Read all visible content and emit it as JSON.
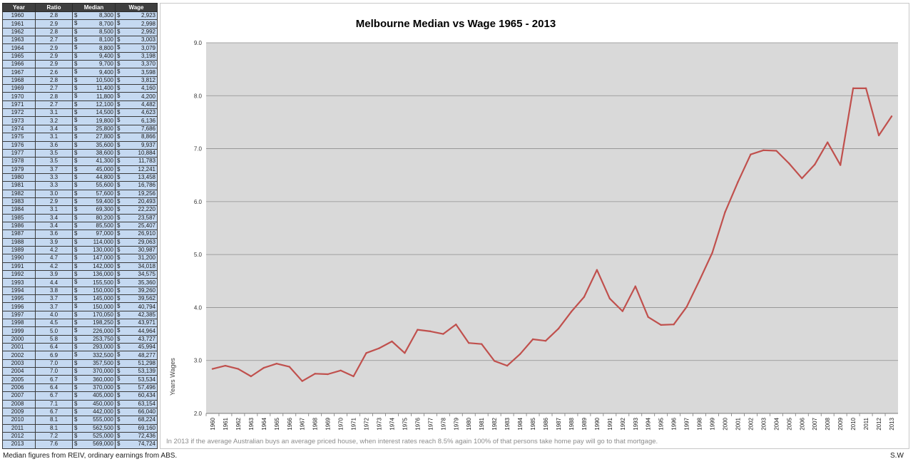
{
  "table": {
    "headers": [
      "Year",
      "Ratio",
      "Median",
      "Wage"
    ],
    "currency_symbol": "$",
    "rows": [
      [
        "1960",
        "2.8",
        "8,300",
        "2,923"
      ],
      [
        "1961",
        "2.9",
        "8,700",
        "2,998"
      ],
      [
        "1962",
        "2.8",
        "8,500",
        "2,992"
      ],
      [
        "1963",
        "2.7",
        "8,100",
        "3,003"
      ],
      [
        "1964",
        "2.9",
        "8,800",
        "3,079"
      ],
      [
        "1965",
        "2.9",
        "9,400",
        "3,198"
      ],
      [
        "1966",
        "2.9",
        "9,700",
        "3,370"
      ],
      [
        "1967",
        "2.6",
        "9,400",
        "3,598"
      ],
      [
        "1968",
        "2.8",
        "10,500",
        "3,812"
      ],
      [
        "1969",
        "2.7",
        "11,400",
        "4,160"
      ],
      [
        "1970",
        "2.8",
        "11,800",
        "4,200"
      ],
      [
        "1971",
        "2.7",
        "12,100",
        "4,482"
      ],
      [
        "1972",
        "3.1",
        "14,500",
        "4,623"
      ],
      [
        "1973",
        "3.2",
        "19,800",
        "6,136"
      ],
      [
        "1974",
        "3.4",
        "25,800",
        "7,686"
      ],
      [
        "1975",
        "3.1",
        "27,800",
        "8,866"
      ],
      [
        "1976",
        "3.6",
        "35,600",
        "9,937"
      ],
      [
        "1977",
        "3.5",
        "38,600",
        "10,884"
      ],
      [
        "1978",
        "3.5",
        "41,300",
        "11,783"
      ],
      [
        "1979",
        "3.7",
        "45,000",
        "12,241"
      ],
      [
        "1980",
        "3.3",
        "44,800",
        "13,458"
      ],
      [
        "1981",
        "3.3",
        "55,600",
        "16,786"
      ],
      [
        "1982",
        "3.0",
        "57,600",
        "19,256"
      ],
      [
        "1983",
        "2.9",
        "59,400",
        "20,493"
      ],
      [
        "1984",
        "3.1",
        "69,300",
        "22,220"
      ],
      [
        "1985",
        "3.4",
        "80,200",
        "23,587"
      ],
      [
        "1986",
        "3.4",
        "85,500",
        "25,407"
      ],
      [
        "1987",
        "3.6",
        "97,000",
        "26,910"
      ],
      [
        "1988",
        "3.9",
        "114,000",
        "29,063"
      ],
      [
        "1989",
        "4.2",
        "130,000",
        "30,987"
      ],
      [
        "1990",
        "4.7",
        "147,000",
        "31,200"
      ],
      [
        "1991",
        "4.2",
        "142,000",
        "34,018"
      ],
      [
        "1992",
        "3.9",
        "136,000",
        "34,575"
      ],
      [
        "1993",
        "4.4",
        "155,500",
        "35,360"
      ],
      [
        "1994",
        "3.8",
        "150,000",
        "39,260"
      ],
      [
        "1995",
        "3.7",
        "145,000",
        "39,562"
      ],
      [
        "1996",
        "3.7",
        "150,000",
        "40,794"
      ],
      [
        "1997",
        "4.0",
        "170,050",
        "42,385"
      ],
      [
        "1998",
        "4.5",
        "198,250",
        "43,971"
      ],
      [
        "1999",
        "5.0",
        "226,000",
        "44,964"
      ],
      [
        "2000",
        "5.8",
        "253,750",
        "43,727"
      ],
      [
        "2001",
        "6.4",
        "293,000",
        "45,994"
      ],
      [
        "2002",
        "6.9",
        "332,500",
        "48,277"
      ],
      [
        "2003",
        "7.0",
        "357,500",
        "51,298"
      ],
      [
        "2004",
        "7.0",
        "370,000",
        "53,139"
      ],
      [
        "2005",
        "6.7",
        "360,000",
        "53,534"
      ],
      [
        "2006",
        "6.4",
        "370,000",
        "57,496"
      ],
      [
        "2007",
        "6.7",
        "405,000",
        "60,434"
      ],
      [
        "2008",
        "7.1",
        "450,000",
        "63,154"
      ],
      [
        "2009",
        "6.7",
        "442,000",
        "66,040"
      ],
      [
        "2010",
        "8.1",
        "555,000",
        "68,224"
      ],
      [
        "2011",
        "8.1",
        "562,500",
        "69,160"
      ],
      [
        "2012",
        "7.2",
        "525,000",
        "72,436"
      ],
      [
        "2013",
        "7.6",
        "569,000",
        "74,724"
      ]
    ]
  },
  "chart_data": {
    "type": "line",
    "title": "Melbourne Median vs Wage 1965 - 2013",
    "ylabel": "Years  Wages",
    "xlabel": "",
    "ylim": [
      2.0,
      9.0
    ],
    "yticks": [
      "2.0",
      "3.0",
      "4.0",
      "5.0",
      "6.0",
      "7.0",
      "8.0",
      "9.0"
    ],
    "grid": true,
    "legend": "none",
    "plot_background": "#d9d9d9",
    "line_color": "#c0504d",
    "categories": [
      "1960",
      "1961",
      "1962",
      "1963",
      "1964",
      "1965",
      "1966",
      "1967",
      "1968",
      "1969",
      "1970",
      "1971",
      "1972",
      "1973",
      "1974",
      "1975",
      "1976",
      "1977",
      "1978",
      "1979",
      "1980",
      "1981",
      "1982",
      "1983",
      "1984",
      "1985",
      "1986",
      "1987",
      "1988",
      "1989",
      "1990",
      "1991",
      "1992",
      "1993",
      "1994",
      "1995",
      "1996",
      "1997",
      "1998",
      "1999",
      "2000",
      "2001",
      "2002",
      "2003",
      "2004",
      "2005",
      "2006",
      "2007",
      "2008",
      "2009",
      "2010",
      "2011",
      "2012",
      "2013"
    ],
    "values": [
      2.84,
      2.9,
      2.84,
      2.7,
      2.86,
      2.94,
      2.88,
      2.61,
      2.75,
      2.74,
      2.81,
      2.7,
      3.14,
      3.23,
      3.36,
      3.14,
      3.58,
      3.55,
      3.5,
      3.68,
      3.33,
      3.31,
      2.99,
      2.9,
      3.12,
      3.4,
      3.37,
      3.6,
      3.92,
      4.2,
      4.71,
      4.17,
      3.93,
      4.4,
      3.82,
      3.67,
      3.68,
      4.01,
      4.51,
      5.03,
      5.8,
      6.37,
      6.89,
      6.97,
      6.96,
      6.72,
      6.44,
      6.7,
      7.12,
      6.69,
      8.14,
      8.14,
      7.25,
      7.61
    ],
    "annotation": "In 2013 if the average Australian buys an average priced house, when interest rates reach 8.5% again 100% of that persons take home pay will go to that mortgage."
  },
  "footer": {
    "source": "Median figures from REIV, ordinary earnings from ABS.",
    "author": "S.W"
  }
}
